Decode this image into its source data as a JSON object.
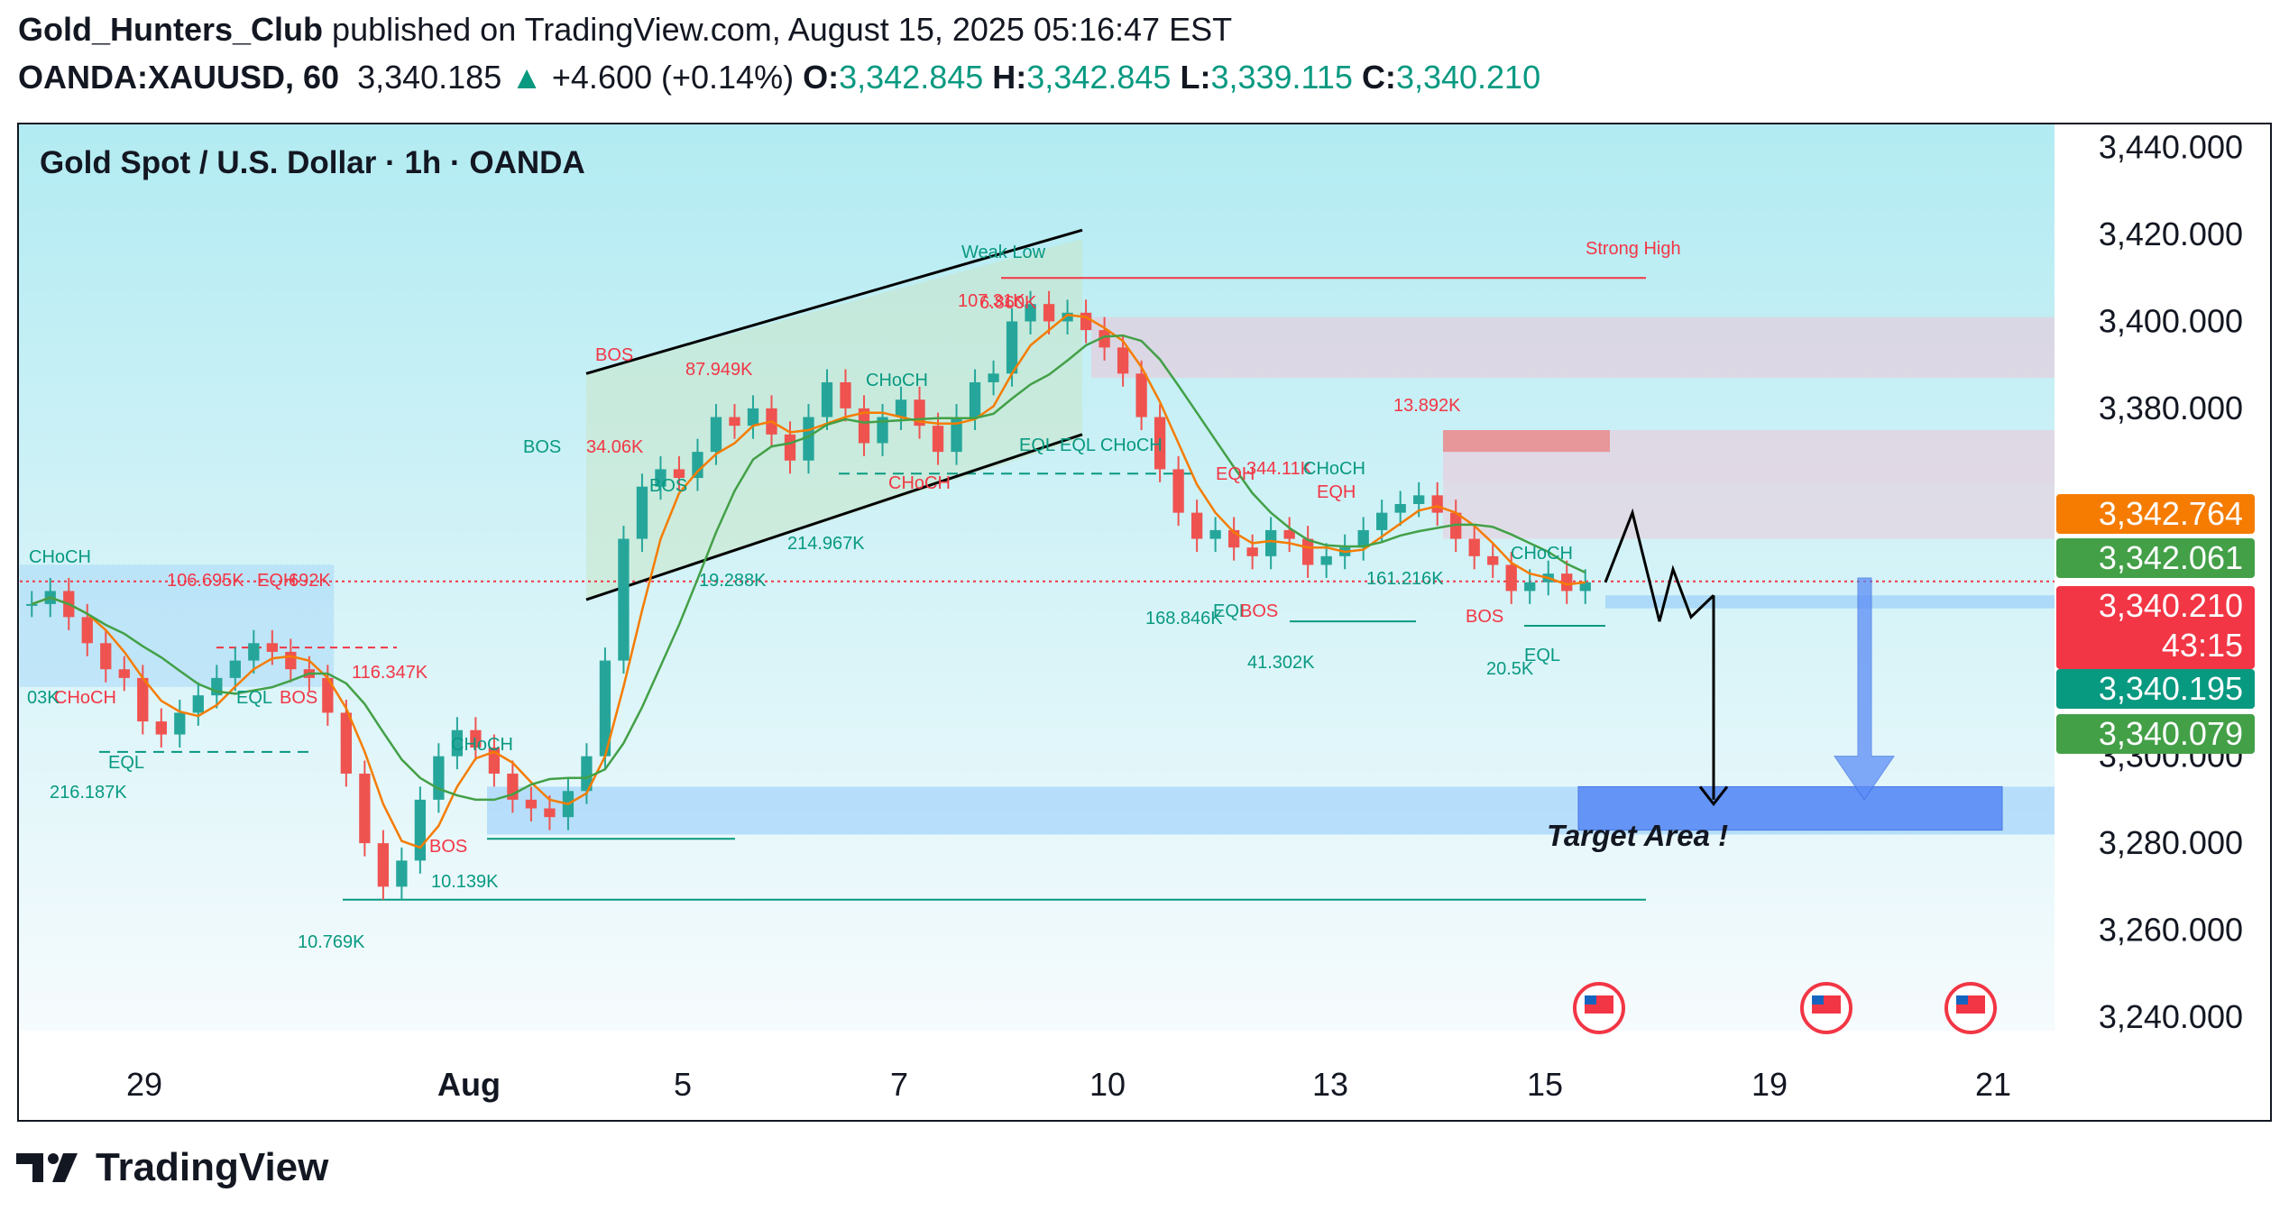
{
  "header": {
    "author": "Gold_Hunters_Club",
    "published_text": "published on TradingView.com, August 15, 2025 05:16:47 EST",
    "symbol": "OANDA:XAUUSD, 60",
    "last": "3,340.185",
    "up_arrow": "▲",
    "change": "+4.600 (+0.14%)",
    "o_label": "O:",
    "o_val": "3,342.845",
    "h_label": "H:",
    "h_val": "3,342.845",
    "l_label": "L:",
    "l_val": "3,339.115",
    "c_label": "C:",
    "c_val": "3,340.210"
  },
  "chart_data": {
    "type": "candlestick",
    "title": "Gold Spot / U.S. Dollar · 1h · OANDA",
    "ylim": [
      3230,
      3445
    ],
    "y_ticks": [
      3440,
      3420,
      3400,
      3380,
      3300,
      3280,
      3260,
      3240
    ],
    "y_tick_labels": [
      "3,440.000",
      "3,420.000",
      "3,400.000",
      "3,380.000",
      "3,300.000",
      "3,280.000",
      "3,260.000",
      "3,240.000"
    ],
    "x_ticks": [
      "29",
      "Aug",
      "5",
      "7",
      "10",
      "13",
      "15",
      "19",
      "21"
    ],
    "price_tags": [
      {
        "value": 3342.764,
        "text": "3,342.764",
        "color": "#f57c00"
      },
      {
        "value": 3342.061,
        "text": "3,342.061",
        "color": "#43a047"
      },
      {
        "value": 3340.21,
        "text": "3,340.210",
        "sub": "43:15",
        "color": "#f23645"
      },
      {
        "value": 3340.195,
        "text": "3,340.195",
        "color": "#089981"
      },
      {
        "value": 3340.079,
        "text": "3,340.079",
        "color": "#43a047"
      }
    ],
    "current_price": 3340.21,
    "candles_close": [
      3335,
      3338,
      3332,
      3326,
      3320,
      3318,
      3308,
      3305,
      3310,
      3314,
      3318,
      3322,
      3326,
      3324,
      3320,
      3318,
      3310,
      3296,
      3280,
      3270,
      3276,
      3290,
      3300,
      3306,
      3302,
      3296,
      3290,
      3288,
      3286,
      3292,
      3300,
      3322,
      3350,
      3362,
      3366,
      3364,
      3370,
      3378,
      3376,
      3380,
      3374,
      3368,
      3378,
      3386,
      3380,
      3372,
      3378,
      3382,
      3376,
      3370,
      3378,
      3386,
      3388,
      3400,
      3404,
      3400,
      3402,
      3398,
      3394,
      3388,
      3378,
      3366,
      3356,
      3350,
      3352,
      3348,
      3346,
      3352,
      3350,
      3344,
      3346,
      3348,
      3352,
      3356,
      3358,
      3360,
      3356,
      3350,
      3346,
      3344,
      3338,
      3340,
      3342,
      3338,
      3340
    ],
    "annotations": [
      {
        "text": "Strong High",
        "color": "#f23645"
      },
      {
        "text": "Weak Low",
        "color": "#089981"
      },
      {
        "text": "6.860K",
        "color": "#f23645"
      },
      {
        "text": "107.31K",
        "color": "#f23645"
      },
      {
        "text": "BOS",
        "color": "#f23645"
      },
      {
        "text": "87.949K",
        "color": "#f23645"
      },
      {
        "text": "CHoCH",
        "color": "#089981"
      },
      {
        "text": "BOS",
        "color": "#089981"
      },
      {
        "text": "34.06K",
        "color": "#f23645"
      },
      {
        "text": "BOS",
        "color": "#089981"
      },
      {
        "text": "CHoCH",
        "color": "#f23645"
      },
      {
        "text": "EQL",
        "color": "#089981"
      },
      {
        "text": "EQL CHoCH",
        "color": "#089981"
      },
      {
        "text": "214.967K",
        "color": "#089981"
      },
      {
        "text": "19.288K",
        "color": "#089981"
      },
      {
        "text": "106.695K",
        "color": "#f23645"
      },
      {
        "text": "EQH",
        "color": "#f23645"
      },
      {
        "text": "692K",
        "color": "#f23645"
      },
      {
        "text": "EQL",
        "color": "#089981"
      },
      {
        "text": "BOS",
        "color": "#f23645"
      },
      {
        "text": "CHoCH",
        "color": "#089981"
      },
      {
        "text": "CHoCH",
        "color": "#f23645"
      },
      {
        "text": "03K",
        "color": "#089981"
      },
      {
        "text": "EQL",
        "color": "#089981"
      },
      {
        "text": "216.187K",
        "color": "#089981"
      },
      {
        "text": "116.347K",
        "color": "#f23645"
      },
      {
        "text": "CHoCH",
        "color": "#089981"
      },
      {
        "text": "BOS",
        "color": "#f23645"
      },
      {
        "text": "10.139K",
        "color": "#089981"
      },
      {
        "text": "10.769K",
        "color": "#089981"
      },
      {
        "text": "13.892K",
        "color": "#f23645"
      },
      {
        "text": "EQH",
        "color": "#f23645"
      },
      {
        "text": "344.11K",
        "color": "#f23645"
      },
      {
        "text": "CHoCH",
        "color": "#089981"
      },
      {
        "text": "EQH",
        "color": "#f23645"
      },
      {
        "text": "161.216K",
        "color": "#089981"
      },
      {
        "text": "168.846K",
        "color": "#089981"
      },
      {
        "text": "EQL",
        "color": "#089981"
      },
      {
        "text": "BOS",
        "color": "#f23645"
      },
      {
        "text": "41.302K",
        "color": "#089981"
      },
      {
        "text": "CHoCH",
        "color": "#089981"
      },
      {
        "text": "BOS",
        "color": "#f23645"
      },
      {
        "text": "EQL",
        "color": "#089981"
      },
      {
        "text": "20.5K",
        "color": "#089981"
      }
    ],
    "target_label": "Target Area !",
    "target_zone": [
      3283,
      3293
    ]
  },
  "footer": {
    "brand": "TradingView"
  },
  "colors": {
    "bull": "#26a69a",
    "bear": "#ef5350",
    "accent": "#2962ff"
  }
}
